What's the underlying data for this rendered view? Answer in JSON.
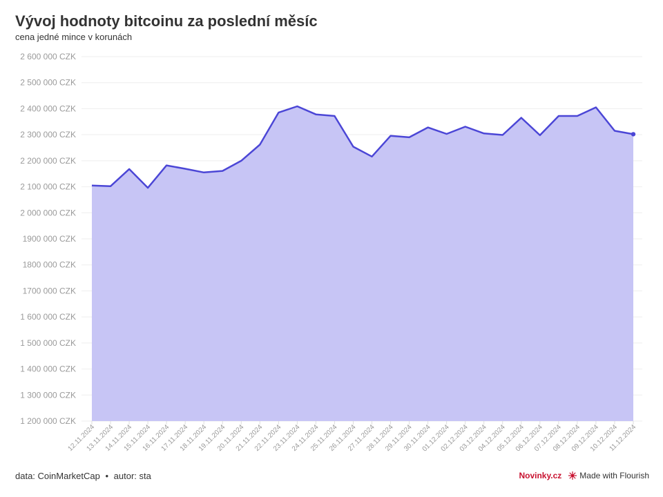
{
  "title": "Vývoj hodnoty bitcoinu za poslední měsíc",
  "subtitle": "cena jedné mince v korunách",
  "footer": {
    "source": "data: CoinMarketCap",
    "separator": "•",
    "author": "autor: sta",
    "brand": "Novinky.cz",
    "made_with": "Made with Flourish"
  },
  "colors": {
    "line": "#4b46d6",
    "area": "#c7c5f5",
    "grid": "#eeeeee",
    "brand": "#c8102e"
  },
  "chart_data": {
    "type": "area",
    "title": "Vývoj hodnoty bitcoinu za poslední měsíc",
    "subtitle": "cena jedné mince v korunách",
    "xlabel": "",
    "ylabel": "",
    "ylim": [
      1200000,
      2600000
    ],
    "yticks": [
      1200000,
      1300000,
      1400000,
      1500000,
      1600000,
      1700000,
      1800000,
      1900000,
      2000000,
      2100000,
      2200000,
      2300000,
      2400000,
      2500000,
      2600000
    ],
    "ytick_labels": [
      "1 200 000 CZK",
      "1 300 000 CZK",
      "1 400 000 CZK",
      "1 500 000 CZK",
      "1 600 000 CZK",
      "1700 000 CZK",
      "1800 000 CZK",
      "1900 000 CZK",
      "2 000 000 CZK",
      "2 100 000 CZK",
      "2 200 000 CZK",
      "2 300 000 CZK",
      "2 400 000 CZK",
      "2 500 000 CZK",
      "2 600 000 CZK"
    ],
    "grid": true,
    "legend": "none",
    "categories": [
      "12.11.2024",
      "13.11.2024",
      "14.11.2024",
      "15.11.2024",
      "16.11.2024",
      "17.11.2024",
      "18.11.2024",
      "19.11.2024",
      "20.11.2024",
      "21.11.2024",
      "22.11.2024",
      "23.11.2024",
      "24.11.2024",
      "25.11.2024",
      "26.11.2024",
      "27.11.2024",
      "28.11.2024",
      "29.11.2024",
      "30.11.2024",
      "01.12.2024",
      "02.12.2024",
      "03.12.2024",
      "04.12.2024",
      "05.12.2024",
      "06.12.2024",
      "07.12.2024",
      "08.12.2024",
      "09.12.2024",
      "10.12.2024",
      "11.12.2024"
    ],
    "values": [
      2105000,
      2102000,
      2168000,
      2096000,
      2182000,
      2169000,
      2155000,
      2161000,
      2200000,
      2262000,
      2385000,
      2409000,
      2378000,
      2372000,
      2254000,
      2216000,
      2296000,
      2290000,
      2328000,
      2303000,
      2331000,
      2305000,
      2299000,
      2365000,
      2298000,
      2372000,
      2372000,
      2405000,
      2315000,
      2302000
    ]
  }
}
